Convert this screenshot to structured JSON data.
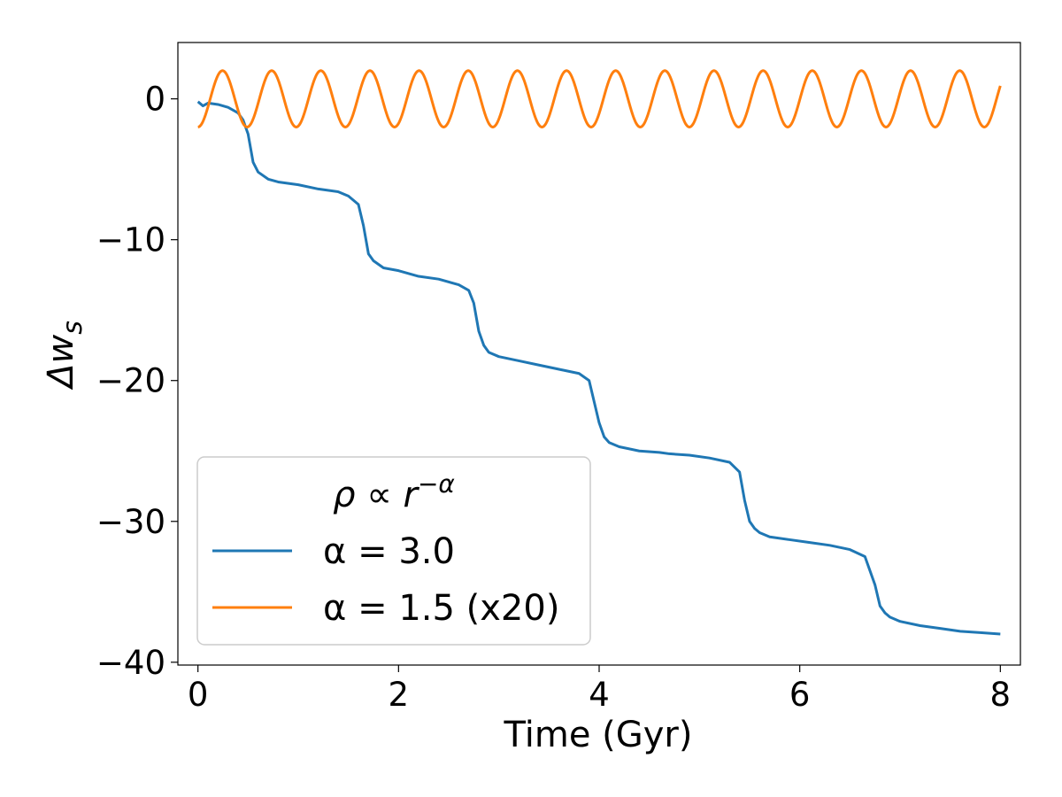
{
  "chart_data": {
    "type": "line",
    "xlabel": "Time (Gyr)",
    "ylabel": "Δw",
    "ylabel_subscript": "s",
    "xlim": [
      -0.2,
      8.2
    ],
    "ylim": [
      -40.2,
      4.0
    ],
    "xticks": [
      0,
      2,
      4,
      6,
      8
    ],
    "xtick_labels": [
      "0",
      "2",
      "4",
      "6",
      "8"
    ],
    "yticks": [
      0,
      -10,
      -20,
      -30,
      -40
    ],
    "ytick_labels": [
      "0",
      "−10",
      "−20",
      "−30",
      "−40"
    ],
    "grid": false,
    "legend": {
      "placement": "lower-left",
      "title_main": "ρ ∝ r",
      "title_exponent": "−α"
    },
    "series": [
      {
        "name": "α = 3.0",
        "color": "#1f77b4",
        "x": [
          0.0,
          0.05,
          0.1,
          0.2,
          0.3,
          0.4,
          0.45,
          0.5,
          0.55,
          0.6,
          0.7,
          0.8,
          1.0,
          1.2,
          1.4,
          1.5,
          1.6,
          1.65,
          1.7,
          1.75,
          1.85,
          2.0,
          2.2,
          2.4,
          2.6,
          2.7,
          2.75,
          2.8,
          2.85,
          2.9,
          3.0,
          3.2,
          3.4,
          3.6,
          3.8,
          3.9,
          3.95,
          4.0,
          4.05,
          4.1,
          4.2,
          4.4,
          4.6,
          4.7,
          4.9,
          5.1,
          5.3,
          5.4,
          5.45,
          5.5,
          5.55,
          5.6,
          5.7,
          5.9,
          6.1,
          6.3,
          6.5,
          6.65,
          6.75,
          6.8,
          6.85,
          6.9,
          7.0,
          7.2,
          7.4,
          7.6,
          7.8,
          8.0
        ],
        "y": [
          -0.2,
          -0.5,
          -0.3,
          -0.4,
          -0.6,
          -1.0,
          -1.5,
          -2.5,
          -4.5,
          -5.2,
          -5.7,
          -5.9,
          -6.1,
          -6.4,
          -6.6,
          -6.9,
          -7.5,
          -9.0,
          -11.0,
          -11.5,
          -12.0,
          -12.2,
          -12.6,
          -12.8,
          -13.2,
          -13.6,
          -14.5,
          -16.5,
          -17.5,
          -18.0,
          -18.3,
          -18.6,
          -18.9,
          -19.2,
          -19.5,
          -20.0,
          -21.5,
          -23.0,
          -24.0,
          -24.4,
          -24.7,
          -25.0,
          -25.1,
          -25.2,
          -25.3,
          -25.5,
          -25.8,
          -26.5,
          -28.5,
          -30.0,
          -30.5,
          -30.8,
          -31.1,
          -31.3,
          -31.5,
          -31.7,
          -32.0,
          -32.5,
          -34.5,
          -36.0,
          -36.5,
          -36.8,
          -37.1,
          -37.4,
          -37.6,
          -37.8,
          -37.9,
          -38.0
        ]
      },
      {
        "name": "α = 1.5 (x20)",
        "color": "#ff7f0e",
        "x_start": 0.0,
        "x_end": 8.0,
        "amplitude": 2.0,
        "period": 0.49,
        "phase_offset": -2.0
      }
    ]
  }
}
